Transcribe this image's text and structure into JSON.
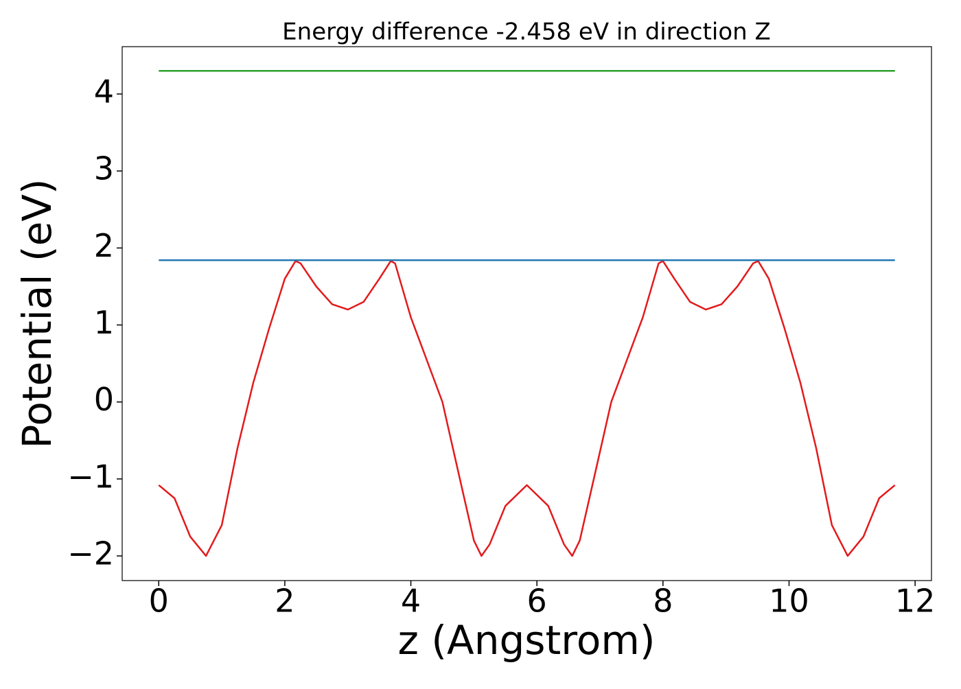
{
  "chart_data": {
    "type": "line",
    "title": "Energy difference -2.458 eV in direction Z",
    "xlabel": "z (Angstrom)",
    "ylabel": "Potential (eV)",
    "xlim": [
      -0.58,
      12.26
    ],
    "ylim": [
      -2.32,
      4.615
    ],
    "xticks": [
      0,
      2,
      4,
      6,
      8,
      10,
      12
    ],
    "yticks": [
      {
        "value": -2,
        "label": "−2"
      },
      {
        "value": -1,
        "label": "−1"
      },
      0,
      1,
      2,
      3,
      4
    ],
    "grid": false,
    "series": [
      {
        "color": "#e31a1c",
        "x": [
          0,
          0.25,
          0.5,
          0.75,
          1.0,
          1.25,
          1.5,
          1.75,
          2.0,
          2.17,
          2.25,
          2.5,
          2.75,
          3.0,
          3.25,
          3.5,
          3.68,
          3.75,
          4.0,
          4.25,
          4.5,
          4.75,
          5.0,
          5.12,
          5.25,
          5.5,
          5.84,
          6.18,
          6.43,
          6.56,
          6.68,
          6.93,
          7.18,
          7.43,
          7.68,
          7.93,
          8.0,
          8.18,
          8.43,
          8.68,
          8.93,
          9.18,
          9.43,
          9.51,
          9.68,
          9.93,
          10.18,
          10.43,
          10.68,
          10.93,
          11.18,
          11.43,
          11.68
        ],
        "values": [
          -1.08,
          -1.25,
          -1.75,
          -2.0,
          -1.6,
          -0.6,
          0.25,
          0.95,
          1.6,
          1.83,
          1.8,
          1.5,
          1.27,
          1.2,
          1.3,
          1.6,
          1.83,
          1.8,
          1.1,
          0.55,
          0.0,
          -0.9,
          -1.8,
          -2.0,
          -1.85,
          -1.35,
          -1.08,
          -1.35,
          -1.85,
          -2.0,
          -1.8,
          -0.9,
          0.0,
          0.55,
          1.1,
          1.8,
          1.83,
          1.6,
          1.3,
          1.2,
          1.27,
          1.5,
          1.8,
          1.83,
          1.6,
          0.95,
          0.25,
          -0.6,
          -1.6,
          -2.0,
          -1.75,
          -1.25,
          -1.08
        ]
      },
      {
        "color": "#1f77b4",
        "x": [
          0,
          11.68
        ],
        "values": [
          1.842,
          1.842
        ]
      },
      {
        "color": "#2ca02c",
        "x": [
          0,
          11.68
        ],
        "values": [
          4.3,
          4.3
        ]
      }
    ]
  }
}
